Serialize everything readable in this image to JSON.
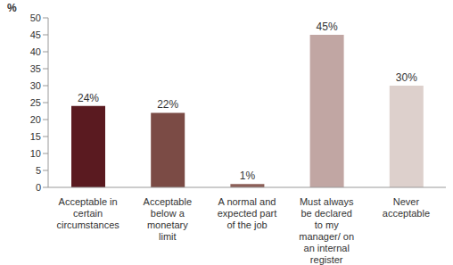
{
  "chart_data": {
    "type": "bar",
    "ylabel": "%",
    "categories": [
      "Acceptable in certain circumstances",
      "Acceptable below a monetary limit",
      "A normal and expected part of the job",
      "Must always be declared to my manager/ on an internal register",
      "Never acceptable"
    ],
    "values": [
      24,
      22,
      1,
      45,
      30
    ],
    "value_labels": [
      "24%",
      "22%",
      "1%",
      "45%",
      "30%"
    ],
    "colors": [
      "#5a1a20",
      "#7b4b45",
      "#8c5f58",
      "#c1a6a3",
      "#ddd0cc"
    ],
    "ylim": [
      0,
      50
    ],
    "yticks": [
      0,
      5,
      10,
      15,
      20,
      25,
      30,
      35,
      40,
      45,
      50
    ],
    "grid": false,
    "data_labels": true
  }
}
